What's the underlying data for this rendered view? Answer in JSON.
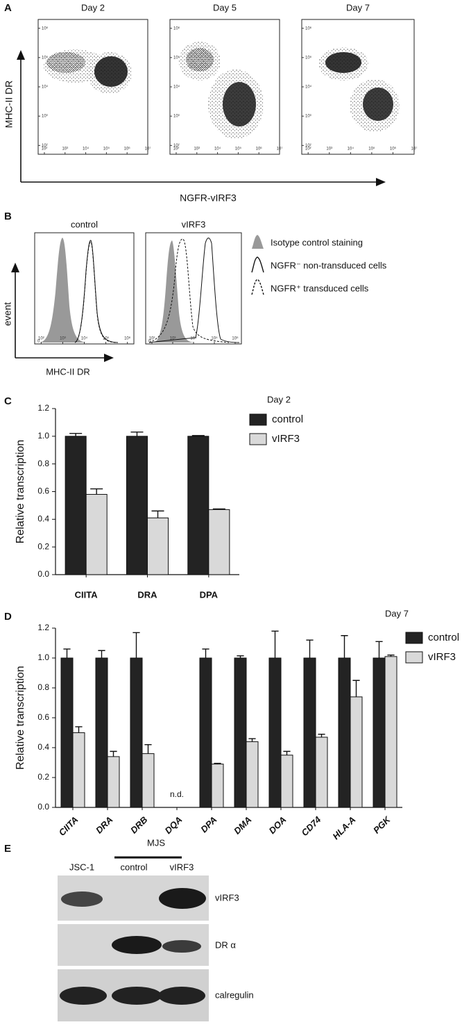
{
  "chart_data": [
    {
      "label": "A",
      "type": "scatter",
      "panels": [
        "Day 2",
        "Day 5",
        "Day 7"
      ],
      "xlabel": "NGFR-vIRF3",
      "ylabel": "MHC-II DR",
      "log": true,
      "xlim": [
        50,
        10000000
      ],
      "ylim": [
        50,
        2000000
      ],
      "xticks": [
        {
          "value": 100,
          "label": "10²"
        },
        {
          "value": 1000,
          "label": "10³"
        },
        {
          "value": 10000,
          "label": "10⁴"
        },
        {
          "value": 100000,
          "label": "10⁵"
        },
        {
          "value": 1000000,
          "label": "10⁶"
        },
        {
          "value": 10000000,
          "label": "10⁷"
        }
      ],
      "yticks": [
        {
          "value": 100,
          "label": "10²"
        },
        {
          "value": 1000,
          "label": "10³"
        },
        {
          "value": 10000,
          "label": "10⁴"
        },
        {
          "value": 100000,
          "label": "10⁵"
        },
        {
          "value": 1000000,
          "label": "10⁶"
        }
      ]
    },
    {
      "label": "B",
      "type": "histogram",
      "panels": [
        "control",
        "vIRF3"
      ],
      "xlabel": "MHC-II DR",
      "ylabel": "event",
      "log": true,
      "xlim": [
        50,
        2000000
      ],
      "xticks": [
        {
          "value": 100,
          "label": "10²"
        },
        {
          "value": 1000,
          "label": "10³"
        },
        {
          "value": 10000,
          "label": "10⁴"
        },
        {
          "value": 100000,
          "label": "10⁵"
        },
        {
          "value": 1000000,
          "label": "10⁶"
        }
      ],
      "yticks": [
        0
      ],
      "legend": [
        "Isotype control staining",
        "NGFR⁻ non-transduced cells",
        "NGFR⁺ transduced cells"
      ]
    },
    {
      "label": "C",
      "type": "bar",
      "title": "Day 2",
      "ylabel": "Relative transcription",
      "categories": [
        "CIITA",
        "DRA",
        "DPA"
      ],
      "series": [
        {
          "name": "control",
          "color": "#232323",
          "values": [
            1.0,
            1.0,
            1.0
          ],
          "errors": [
            0.02,
            0.03,
            0.005
          ]
        },
        {
          "name": "vIRF3",
          "color": "#d9d9d9",
          "values": [
            0.58,
            0.41,
            0.47
          ],
          "errors": [
            0.04,
            0.05,
            0.005
          ]
        }
      ],
      "ylim": [
        0,
        1.2
      ],
      "yticks": [
        {
          "value": 0,
          "label": "0.0"
        },
        0.2,
        0.4,
        0.6,
        0.8,
        {
          "value": 1,
          "label": "1.0"
        },
        1.2
      ],
      "legend": "top-right"
    },
    {
      "label": "D",
      "type": "bar",
      "title": "Day 7",
      "ylabel": "Relative transcription",
      "categories": [
        "CIITA",
        "DRA",
        "DRB",
        "DQA",
        "DPA",
        "DMA",
        "DOA",
        "CD74",
        "HLA-A",
        "PGK"
      ],
      "series": [
        {
          "name": "control",
          "color": "#232323",
          "values": [
            1.0,
            1.0,
            1.0,
            null,
            1.0,
            1.0,
            1.0,
            1.0,
            1.0,
            1.0
          ],
          "errors": [
            0.06,
            0.05,
            0.17,
            null,
            0.06,
            0.015,
            0.18,
            0.12,
            0.15,
            0.11
          ]
        },
        {
          "name": "vIRF3",
          "color": "#d9d9d9",
          "values": [
            0.5,
            0.34,
            0.36,
            null,
            0.29,
            0.44,
            0.35,
            0.47,
            0.74,
            1.01
          ],
          "errors": [
            0.04,
            0.035,
            0.06,
            null,
            0.005,
            0.02,
            0.025,
            0.02,
            0.11,
            0.01
          ]
        }
      ],
      "ylim": [
        0,
        1.2
      ],
      "yticks": [
        {
          "value": 0,
          "label": "0.0"
        },
        0.2,
        0.4,
        0.6,
        0.8,
        {
          "value": 1,
          "label": "1.0"
        },
        1.2
      ],
      "annotations": [
        {
          "text": "n.d.",
          "category": "DQA"
        }
      ],
      "legend": "top-right"
    }
  ],
  "blot": {
    "label": "E",
    "group": "MJS",
    "lanes": [
      "JSC-1",
      "control",
      "vIRF3"
    ],
    "bands": [
      "vIRF3",
      "DR α",
      "calregulin"
    ]
  }
}
